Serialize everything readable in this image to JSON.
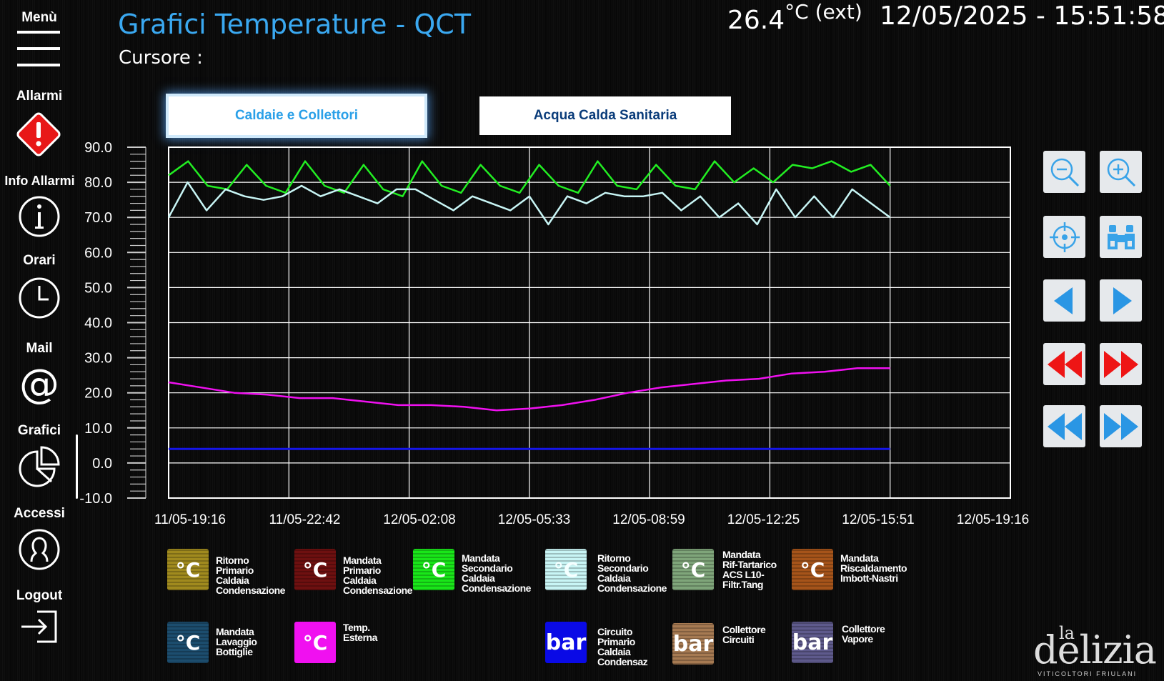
{
  "header": {
    "title": "Grafici Temperature - QCT",
    "cursor_label": "Cursore :",
    "ext_temp_value": "26.4",
    "ext_temp_unit": "°C",
    "ext_temp_suffix": "(ext)",
    "datetime": "12/05/2025 - 15:51:58"
  },
  "sidebar": {
    "items": [
      {
        "label": "Menù",
        "icon": "hamburger-icon"
      },
      {
        "label": "Allarmi",
        "icon": "alarm-icon"
      },
      {
        "label": "Info Allarmi",
        "icon": "info-icon"
      },
      {
        "label": "Orari",
        "icon": "clock-icon"
      },
      {
        "label": "Mail",
        "icon": "at-icon"
      },
      {
        "label": "Grafici",
        "icon": "pie-chart-icon"
      },
      {
        "label": "Accessi",
        "icon": "user-icon"
      },
      {
        "label": "Logout",
        "icon": "logout-icon"
      }
    ]
  },
  "tabs": [
    {
      "label": "Caldaie e Collettori",
      "active": true
    },
    {
      "label": "Acqua Calda Sanitaria",
      "active": false
    }
  ],
  "tools": [
    "zoom-out-icon",
    "zoom-in-icon",
    "target-icon",
    "binoculars-icon",
    "arrow-left-icon",
    "arrow-right-icon",
    "fast-rewind-icon",
    "fast-forward-icon",
    "rewind-icon",
    "forward-icon"
  ],
  "legend": [
    {
      "unit": "°C",
      "color": "#a08a1e",
      "label": [
        "Ritorno",
        "Primario",
        "Caldaia",
        "Condensazione"
      ]
    },
    {
      "unit": "°C",
      "color": "#6e1010",
      "label": [
        "Mandata",
        "Primario",
        "Caldaia",
        "Condensazione"
      ]
    },
    {
      "unit": "°C",
      "color": "#19e619",
      "label": [
        "Mandata",
        "Secondario",
        "Caldaia",
        "Condensazione"
      ]
    },
    {
      "unit": "°C",
      "color": "#c8f5f5",
      "label": [
        "Ritorno",
        "Secondario",
        "Caldaia",
        "Condensazione"
      ]
    },
    {
      "unit": "°C",
      "color": "#7fa57a",
      "label": [
        "Mandata",
        "Rif-Tartarico",
        "ACS L10-",
        "Filtr.Tang"
      ]
    },
    {
      "unit": "°C",
      "color": "#a6541a",
      "label": [
        "Mandata",
        "Riscaldamento",
        "Imbott-Nastri"
      ]
    },
    {
      "unit": "°C",
      "color": "#1c4d6e",
      "label": [
        "Mandata",
        "Lavaggio",
        "Bottiglie"
      ]
    },
    {
      "unit": "°C",
      "color": "#f010f0",
      "label": [
        "Temp.",
        "Esterna"
      ]
    },
    {
      "unit": "bar",
      "color": "#0a0ae6",
      "label": [
        "Circuito",
        "Primario",
        "Caldaia",
        "Condensaz"
      ]
    },
    {
      "unit": "bar",
      "color": "#a67a52",
      "label": [
        "Collettore",
        "Circuiti"
      ]
    },
    {
      "unit": "bar",
      "color": "#5e5a8c",
      "label": [
        "Collettore",
        "Vapore"
      ]
    }
  ],
  "logo": {
    "top": "la",
    "main": "delizia",
    "sub": "VITICOLTORI FRIULANI"
  },
  "chart_data": {
    "type": "line",
    "ylim": [
      -10,
      90
    ],
    "yticks": [
      "90.0",
      "80.0",
      "70.0",
      "60.0",
      "50.0",
      "40.0",
      "30.0",
      "20.0",
      "10.0",
      "0.0",
      "-10.0"
    ],
    "xticks": [
      "11/05-19:16",
      "11/05-22:42",
      "12/05-02:08",
      "12/05-05:33",
      "12/05-08:59",
      "12/05-12:25",
      "12/05-15:51",
      "12/05-19:16"
    ],
    "grid": true,
    "series": [
      {
        "color": "#22ee22",
        "values": [
          82,
          86,
          79,
          78,
          85,
          79,
          77,
          86,
          79,
          77,
          85,
          78,
          76,
          86,
          79,
          77,
          85,
          79,
          77,
          85,
          79,
          77,
          86,
          79,
          78,
          85,
          79,
          78,
          86,
          80,
          84,
          80,
          85,
          84,
          86,
          83,
          85,
          79
        ]
      },
      {
        "color": "#c8f5f5",
        "values": [
          70,
          80,
          72,
          78,
          76,
          75,
          76,
          79,
          76,
          78,
          76,
          74,
          78,
          78,
          75,
          72,
          76,
          74,
          72,
          76,
          68,
          76,
          74,
          77,
          76,
          76,
          77,
          72,
          76,
          70,
          74,
          68,
          78,
          70,
          76,
          70,
          78,
          74,
          70
        ]
      },
      {
        "color": "#f010f0",
        "values": [
          23,
          21.5,
          20,
          19.5,
          18.5,
          18.5,
          17.5,
          16.5,
          16.5,
          16,
          15,
          15.5,
          16.5,
          18,
          20,
          21.5,
          22.5,
          23.5,
          24,
          25.5,
          26,
          27,
          27
        ]
      },
      {
        "color": "#1515e8",
        "values": [
          4,
          4,
          4,
          4,
          4,
          4,
          4,
          4
        ]
      }
    ]
  }
}
